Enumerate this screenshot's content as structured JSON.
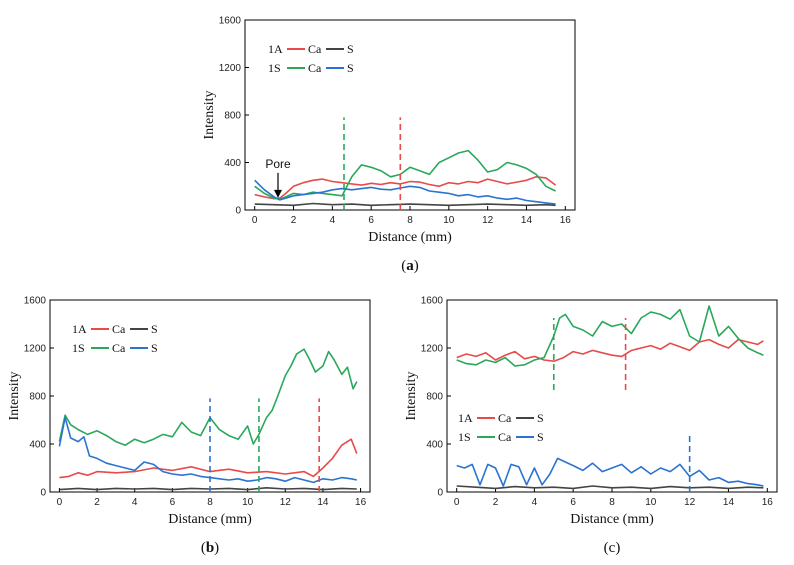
{
  "colors": {
    "Ca_1A": "#e84a4a",
    "S_1A": "#444444",
    "Ca_1S": "#2aa85a",
    "S_1S": "#2a74d0",
    "axis": "#000000"
  },
  "chart_data": [
    {
      "type": "line",
      "caption_bold": "a",
      "caption_left": "(",
      "caption_right": ")",
      "xlabel": "Distance (mm)",
      "ylabel": "Intensity",
      "xlim": [
        -0.5,
        16.5
      ],
      "ylim": [
        0,
        1600
      ],
      "xticks": [
        0,
        2,
        4,
        6,
        8,
        10,
        12,
        14,
        16
      ],
      "yticks": [
        0,
        400,
        800,
        1200,
        1600
      ],
      "legend": {
        "row1": {
          "sample": "1A",
          "ca": "Ca",
          "s": "S"
        },
        "row2": {
          "sample": "1S",
          "ca": "Ca",
          "s": "S"
        }
      },
      "annotation": {
        "text": "Pore",
        "x": 1.2,
        "y": 85
      },
      "markers": [
        {
          "series": "Ca_1S",
          "x": 4.6,
          "y0": 0,
          "y1": 780
        },
        {
          "series": "Ca_1A",
          "x": 7.5,
          "y0": 0,
          "y1": 780
        }
      ],
      "series": [
        {
          "name": "Ca_1A",
          "x": [
            0,
            0.5,
            1,
            1.3,
            1.6,
            2,
            2.5,
            3,
            3.5,
            4,
            4.5,
            5,
            5.5,
            6,
            6.5,
            7,
            7.5,
            8,
            8.5,
            9,
            9.5,
            10,
            10.5,
            11,
            11.5,
            12,
            12.5,
            13,
            13.5,
            14,
            14.5,
            15,
            15.5
          ],
          "y": [
            130,
            110,
            95,
            100,
            140,
            200,
            230,
            250,
            260,
            240,
            230,
            220,
            210,
            225,
            215,
            230,
            220,
            240,
            235,
            215,
            200,
            230,
            220,
            240,
            230,
            260,
            240,
            220,
            235,
            250,
            280,
            270,
            210
          ]
        },
        {
          "name": "S_1A",
          "x": [
            0,
            1,
            2,
            3,
            4,
            5,
            6,
            7,
            8,
            9,
            10,
            11,
            12,
            13,
            14,
            15,
            15.5
          ],
          "y": [
            50,
            45,
            40,
            55,
            45,
            50,
            40,
            45,
            50,
            45,
            40,
            45,
            50,
            45,
            40,
            45,
            40
          ]
        },
        {
          "name": "Ca_1S",
          "x": [
            0,
            0.5,
            1,
            1.3,
            1.6,
            2,
            2.5,
            3,
            3.5,
            4,
            4.5,
            5,
            5.5,
            6,
            6.5,
            7,
            7.5,
            8,
            8.5,
            9,
            9.5,
            10,
            10.5,
            11,
            11.5,
            12,
            12.5,
            13,
            13.5,
            14,
            14.5,
            15,
            15.5
          ],
          "y": [
            200,
            140,
            100,
            90,
            110,
            140,
            130,
            150,
            140,
            130,
            120,
            280,
            380,
            360,
            330,
            280,
            300,
            360,
            330,
            300,
            400,
            440,
            480,
            500,
            420,
            320,
            340,
            400,
            380,
            350,
            300,
            200,
            160
          ]
        },
        {
          "name": "S_1S",
          "x": [
            0,
            0.5,
            1,
            1.3,
            1.6,
            2,
            2.5,
            3,
            3.5,
            4,
            4.5,
            5,
            5.5,
            6,
            6.5,
            7,
            7.5,
            8,
            8.5,
            9,
            9.5,
            10,
            10.5,
            11,
            11.5,
            12,
            12.5,
            13,
            13.5,
            14,
            14.5,
            15,
            15.5
          ],
          "y": [
            250,
            170,
            110,
            85,
            100,
            120,
            130,
            140,
            150,
            170,
            180,
            170,
            180,
            190,
            175,
            170,
            185,
            200,
            190,
            160,
            150,
            140,
            120,
            130,
            110,
            120,
            100,
            90,
            100,
            80,
            70,
            60,
            50
          ]
        }
      ]
    },
    {
      "type": "line",
      "caption_bold": "b",
      "caption_left": "(",
      "caption_right": ")",
      "xlabel": "Distance (mm)",
      "ylabel": "Intensity",
      "xlim": [
        -0.5,
        16.5
      ],
      "ylim": [
        0,
        1600
      ],
      "xticks": [
        0,
        2,
        4,
        6,
        8,
        10,
        12,
        14,
        16
      ],
      "yticks": [
        0,
        400,
        800,
        1200,
        1600
      ],
      "legend": {
        "row1": {
          "sample": "1A",
          "ca": "Ca",
          "s": "S"
        },
        "row2": {
          "sample": "1S",
          "ca": "Ca",
          "s": "S"
        }
      },
      "markers": [
        {
          "series": "S_1S",
          "x": 8.0,
          "y0": 0,
          "y1": 780
        },
        {
          "series": "Ca_1S",
          "x": 10.6,
          "y0": 0,
          "y1": 780
        },
        {
          "series": "Ca_1A",
          "x": 13.8,
          "y0": 0,
          "y1": 780
        }
      ],
      "series": [
        {
          "name": "Ca_1A",
          "x": [
            0,
            0.5,
            1,
            1.5,
            2,
            3,
            4,
            5,
            6,
            7,
            8,
            9,
            10,
            11,
            12,
            13,
            13.5,
            14,
            14.5,
            15,
            15.5,
            15.8
          ],
          "y": [
            120,
            130,
            160,
            140,
            170,
            160,
            170,
            200,
            180,
            210,
            170,
            190,
            160,
            170,
            150,
            170,
            130,
            200,
            280,
            390,
            440,
            320
          ]
        },
        {
          "name": "S_1A",
          "x": [
            0,
            1,
            2,
            3,
            4,
            5,
            6,
            7,
            8,
            9,
            10,
            11,
            12,
            13,
            14,
            15,
            15.8
          ],
          "y": [
            20,
            30,
            20,
            30,
            25,
            30,
            20,
            30,
            25,
            30,
            20,
            35,
            25,
            30,
            20,
            30,
            25
          ]
        },
        {
          "name": "Ca_1S",
          "x": [
            0,
            0.3,
            0.6,
            1,
            1.5,
            2,
            2.5,
            3,
            3.5,
            4,
            4.5,
            5,
            5.5,
            6,
            6.5,
            7,
            7.5,
            8,
            8.5,
            9,
            9.5,
            10,
            10.3,
            10.6,
            11,
            11.3,
            11.6,
            12,
            12.3,
            12.6,
            13,
            13.3,
            13.6,
            14,
            14.3,
            14.6,
            15,
            15.3,
            15.6,
            15.8
          ],
          "y": [
            420,
            640,
            560,
            520,
            480,
            510,
            470,
            420,
            390,
            440,
            410,
            440,
            480,
            460,
            580,
            500,
            470,
            620,
            520,
            470,
            440,
            550,
            400,
            480,
            620,
            680,
            800,
            970,
            1050,
            1150,
            1190,
            1100,
            1000,
            1050,
            1170,
            1100,
            980,
            1040,
            860,
            920
          ]
        },
        {
          "name": "S_1S",
          "x": [
            0,
            0.3,
            0.6,
            1,
            1.3,
            1.6,
            2,
            2.5,
            3,
            3.5,
            4,
            4.5,
            5,
            5.5,
            6,
            6.5,
            7,
            7.5,
            8,
            8.5,
            9,
            9.5,
            10,
            10.5,
            11,
            11.5,
            12,
            12.5,
            13,
            13.5,
            14,
            14.5,
            15,
            15.5,
            15.8
          ],
          "y": [
            380,
            620,
            450,
            420,
            460,
            300,
            280,
            240,
            220,
            200,
            180,
            250,
            230,
            170,
            150,
            140,
            150,
            130,
            120,
            110,
            100,
            110,
            90,
            100,
            120,
            110,
            90,
            120,
            100,
            80,
            110,
            100,
            120,
            110,
            100
          ]
        }
      ]
    },
    {
      "type": "line",
      "caption_bold": "",
      "caption_left": "(",
      "caption_right": ")",
      "caption_plain": "c",
      "xlabel": "Distance (mm)",
      "ylabel": "Intensity",
      "xlim": [
        -0.5,
        16.5
      ],
      "ylim": [
        0,
        1600
      ],
      "xticks": [
        0,
        2,
        4,
        6,
        8,
        10,
        12,
        14,
        16
      ],
      "yticks": [
        0,
        400,
        800,
        1200,
        1600
      ],
      "legend": {
        "row1": {
          "sample": "1A",
          "ca": "Ca",
          "s": "S"
        },
        "row2": {
          "sample": "1S",
          "ca": "Ca",
          "s": "S"
        }
      },
      "markers": [
        {
          "series": "Ca_1S",
          "x": 5.0,
          "y0": 850,
          "y1": 1450
        },
        {
          "series": "Ca_1A",
          "x": 8.7,
          "y0": 850,
          "y1": 1450
        },
        {
          "series": "S_1S",
          "x": 12.0,
          "y0": 0,
          "y1": 480
        }
      ],
      "series": [
        {
          "name": "Ca_1A",
          "x": [
            0,
            0.5,
            1,
            1.5,
            2,
            2.5,
            3,
            3.5,
            4,
            4.5,
            5,
            5.5,
            6,
            6.5,
            7,
            7.5,
            8,
            8.5,
            9,
            9.5,
            10,
            10.5,
            11,
            11.5,
            12,
            12.5,
            13,
            13.5,
            14,
            14.5,
            15,
            15.5,
            15.8
          ],
          "y": [
            1120,
            1150,
            1130,
            1160,
            1100,
            1140,
            1170,
            1110,
            1130,
            1100,
            1090,
            1120,
            1170,
            1150,
            1180,
            1160,
            1140,
            1130,
            1180,
            1200,
            1220,
            1190,
            1240,
            1210,
            1180,
            1250,
            1270,
            1230,
            1200,
            1270,
            1250,
            1230,
            1260
          ]
        },
        {
          "name": "S_1A",
          "x": [
            0,
            1,
            2,
            3,
            4,
            5,
            6,
            7,
            8,
            9,
            10,
            11,
            12,
            13,
            14,
            15,
            15.8
          ],
          "y": [
            50,
            40,
            30,
            45,
            35,
            40,
            30,
            50,
            35,
            40,
            30,
            45,
            35,
            40,
            30,
            40,
            35
          ]
        },
        {
          "name": "Ca_1S",
          "x": [
            0,
            0.5,
            1,
            1.5,
            2,
            2.5,
            3,
            3.5,
            4,
            4.5,
            5,
            5.3,
            5.6,
            6,
            6.5,
            7,
            7.5,
            8,
            8.5,
            9,
            9.5,
            10,
            10.5,
            11,
            11.5,
            12,
            12.5,
            13,
            13.5,
            14,
            14.5,
            15,
            15.5,
            15.8
          ],
          "y": [
            1100,
            1070,
            1060,
            1100,
            1080,
            1120,
            1050,
            1060,
            1100,
            1120,
            1300,
            1450,
            1480,
            1380,
            1350,
            1300,
            1420,
            1380,
            1400,
            1320,
            1450,
            1500,
            1480,
            1440,
            1520,
            1300,
            1250,
            1550,
            1300,
            1380,
            1280,
            1200,
            1160,
            1140
          ]
        },
        {
          "name": "S_1S",
          "x": [
            0,
            0.4,
            0.8,
            1.2,
            1.6,
            2,
            2.4,
            2.8,
            3.2,
            3.6,
            4,
            4.4,
            4.8,
            5.2,
            5.6,
            6,
            6.5,
            7,
            7.5,
            8,
            8.5,
            9,
            9.5,
            10,
            10.5,
            11,
            11.5,
            12,
            12.5,
            13,
            13.5,
            14,
            14.5,
            15,
            15.5,
            15.8
          ],
          "y": [
            220,
            200,
            230,
            60,
            230,
            200,
            50,
            230,
            210,
            60,
            200,
            60,
            150,
            280,
            250,
            220,
            180,
            240,
            170,
            200,
            230,
            160,
            210,
            150,
            200,
            170,
            230,
            130,
            180,
            100,
            120,
            80,
            90,
            70,
            60,
            50
          ]
        }
      ]
    }
  ]
}
